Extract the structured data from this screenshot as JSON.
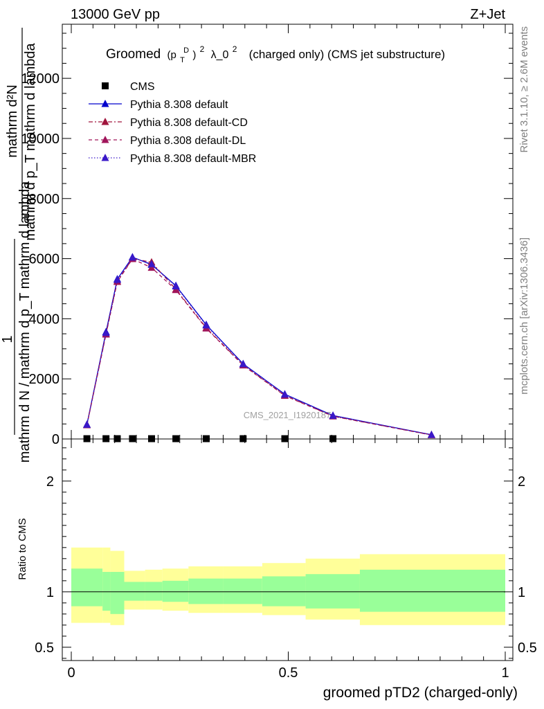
{
  "header": {
    "left": "13000 GeV pp",
    "right": "Z+Jet"
  },
  "side_labels": {
    "rivet": "Rivet 3.1.10, ≥ 2.6M events",
    "mcplots": "mcplots.cern.ch [arXiv:1306.3436]"
  },
  "watermark": "CMS_2021_I1920187",
  "chart_data": [
    {
      "type": "line",
      "title": "Groomed (p_T^D)^2 λ_0^2 (charged only) (CMS jet substructure)",
      "title_parts": {
        "prefix": "Groomed",
        "p": "(p",
        "sub": "T",
        "sup": "D",
        "close": ")",
        "exp": "2",
        "lambda": "λ_0",
        "lambda_exp": "2",
        "suffix": "(charged only) (CMS jet substructure)"
      },
      "ylabel": {
        "numerator": "mathrm d²N",
        "numerator_fragment": "mathrm d p_T mathrm d lambda",
        "one": "1",
        "denominator": "mathrm d N / mathrm d p_T mathrm d lambda"
      },
      "xlim": [
        0,
        1
      ],
      "ylim": [
        0,
        13800
      ],
      "yticks": [
        {
          "v": 0,
          "label": "0"
        },
        {
          "v": 2000,
          "label": "2000"
        },
        {
          "v": 4000,
          "label": "4000"
        },
        {
          "v": 6000,
          "label": "6000"
        },
        {
          "v": 8000,
          "label": "8000"
        },
        {
          "v": 10000,
          "label": "10000"
        },
        {
          "v": 12000,
          "label": "12000"
        }
      ],
      "grid": false,
      "legend_position": "top-left",
      "series": [
        {
          "name": "CMS",
          "color": "#000000",
          "marker": "square",
          "style": "none",
          "x": [
            0.036,
            0.08,
            0.106,
            0.141,
            0.185,
            0.241,
            0.311,
            0.396,
            0.492,
            0.603
          ],
          "y": [
            10,
            10,
            10,
            10,
            10,
            10,
            10,
            10,
            10,
            10
          ]
        },
        {
          "name": "Pythia 8.308 default",
          "color": "#0000cc",
          "marker": "triangle",
          "style": "solid",
          "x": [
            0.036,
            0.08,
            0.106,
            0.141,
            0.185,
            0.241,
            0.311,
            0.396,
            0.492,
            0.603,
            0.83
          ],
          "y": [
            480,
            3560,
            5320,
            6050,
            5800,
            5100,
            3800,
            2500,
            1490,
            780,
            140
          ]
        },
        {
          "name": "Pythia 8.308 default-CD",
          "color": "#a0143c",
          "marker": "triangle",
          "style": "dashdot",
          "x": [
            0.036,
            0.08,
            0.106,
            0.141,
            0.185,
            0.241,
            0.311,
            0.396,
            0.492,
            0.603,
            0.83
          ],
          "y": [
            470,
            3500,
            5250,
            6000,
            5880,
            4980,
            3700,
            2460,
            1450,
            760,
            135
          ]
        },
        {
          "name": "Pythia 8.308 default-DL",
          "color": "#a0145a",
          "marker": "triangle",
          "style": "dashed",
          "x": [
            0.036,
            0.08,
            0.106,
            0.141,
            0.185,
            0.241,
            0.311,
            0.396,
            0.492,
            0.603,
            0.83
          ],
          "y": [
            460,
            3480,
            5230,
            5990,
            5700,
            4960,
            3680,
            2450,
            1440,
            755,
            130
          ]
        },
        {
          "name": "Pythia 8.308 default-MBR",
          "color": "#3a18c8",
          "marker": "triangle",
          "style": "dotted",
          "x": [
            0.036,
            0.08,
            0.106,
            0.141,
            0.185,
            0.241,
            0.311,
            0.396,
            0.492,
            0.603,
            0.83
          ],
          "y": [
            475,
            3530,
            5300,
            6040,
            5820,
            5080,
            3780,
            2490,
            1480,
            775,
            138
          ]
        }
      ]
    },
    {
      "type": "area",
      "ylabel": "Ratio to CMS",
      "xlabel": "groomed pTD2 (charged-only)",
      "xlim": [
        0,
        1
      ],
      "ylim": [
        0.38,
        2.38
      ],
      "ytick_labels": [
        {
          "v": 0.5,
          "label": "0.5"
        },
        {
          "v": 1,
          "label": "1"
        },
        {
          "v": 2,
          "label": "2"
        }
      ],
      "xtick_labels": [
        {
          "v": 0,
          "label": "0"
        },
        {
          "v": 0.5,
          "label": "0.5"
        },
        {
          "v": 1,
          "label": "1"
        }
      ],
      "reference_line": 1,
      "band_colors": {
        "inner": "#99ff99",
        "outer": "#ffff99"
      },
      "bands": [
        {
          "x0": 0.0,
          "x1": 0.072,
          "inner": [
            0.87,
            1.21
          ],
          "outer": [
            0.72,
            1.4
          ]
        },
        {
          "x0": 0.072,
          "x1": 0.09,
          "inner": [
            0.83,
            1.18
          ],
          "outer": [
            0.72,
            1.4
          ]
        },
        {
          "x0": 0.09,
          "x1": 0.122,
          "inner": [
            0.8,
            1.18
          ],
          "outer": [
            0.7,
            1.37
          ]
        },
        {
          "x0": 0.122,
          "x1": 0.17,
          "inner": [
            0.92,
            1.09
          ],
          "outer": [
            0.84,
            1.19
          ]
        },
        {
          "x0": 0.17,
          "x1": 0.21,
          "inner": [
            0.92,
            1.09
          ],
          "outer": [
            0.84,
            1.2
          ]
        },
        {
          "x0": 0.21,
          "x1": 0.27,
          "inner": [
            0.91,
            1.1
          ],
          "outer": [
            0.83,
            1.21
          ]
        },
        {
          "x0": 0.27,
          "x1": 0.35,
          "inner": [
            0.89,
            1.12
          ],
          "outer": [
            0.81,
            1.23
          ]
        },
        {
          "x0": 0.35,
          "x1": 0.44,
          "inner": [
            0.89,
            1.12
          ],
          "outer": [
            0.81,
            1.23
          ]
        },
        {
          "x0": 0.44,
          "x1": 0.54,
          "inner": [
            0.87,
            1.14
          ],
          "outer": [
            0.79,
            1.26
          ]
        },
        {
          "x0": 0.54,
          "x1": 0.665,
          "inner": [
            0.85,
            1.16
          ],
          "outer": [
            0.75,
            1.3
          ]
        },
        {
          "x0": 0.665,
          "x1": 1.0,
          "inner": [
            0.82,
            1.2
          ],
          "outer": [
            0.7,
            1.34
          ]
        }
      ]
    }
  ]
}
